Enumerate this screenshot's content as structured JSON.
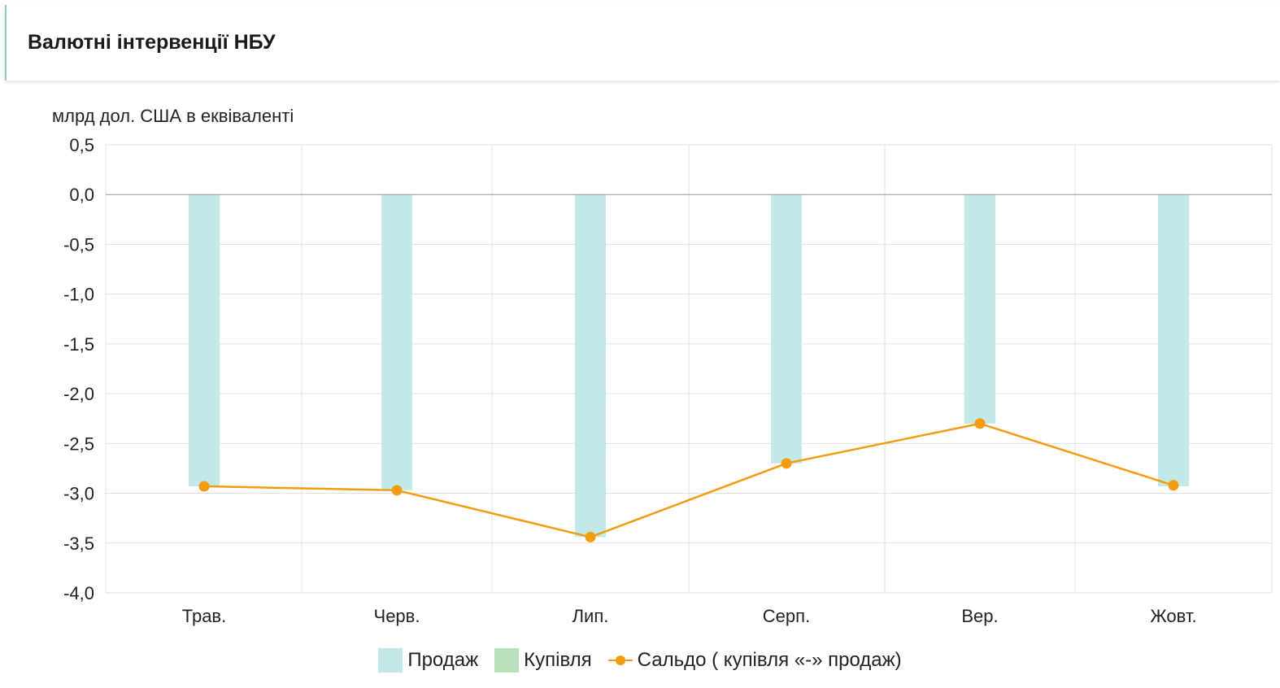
{
  "header": {
    "title": "Валютні інтервенції НБУ"
  },
  "chart_data": {
    "type": "bar",
    "title": "Валютні інтервенції НБУ",
    "ylabel": "млрд дол. США в еквіваленті",
    "xlabel": "",
    "categories": [
      "Трав.",
      "Черв.",
      "Лип.",
      "Серп.",
      "Вер.",
      "Жовт."
    ],
    "y_ticks": [
      "0,5",
      "0,0",
      "-0,5",
      "-1,0",
      "-1,5",
      "-2,0",
      "-2,5",
      "-3,0",
      "-3,5",
      "-4,0"
    ],
    "ylim": [
      -4.0,
      0.5
    ],
    "grid": true,
    "legend_position": "bottom",
    "series": [
      {
        "name": "Продаж",
        "kind": "bar",
        "color": "#c2e9e8",
        "values": [
          -2.93,
          -2.97,
          -3.44,
          -2.7,
          -2.3,
          -2.93
        ]
      },
      {
        "name": "Купівля",
        "kind": "bar",
        "color": "#b8e0bc",
        "values": [
          0,
          0,
          0,
          0,
          0,
          0
        ]
      },
      {
        "name": "Сальдо ( купівля «-» продаж)",
        "kind": "line",
        "color": "#f39c12",
        "values": [
          -2.93,
          -2.97,
          -3.44,
          -2.7,
          -2.3,
          -2.92
        ]
      }
    ]
  }
}
